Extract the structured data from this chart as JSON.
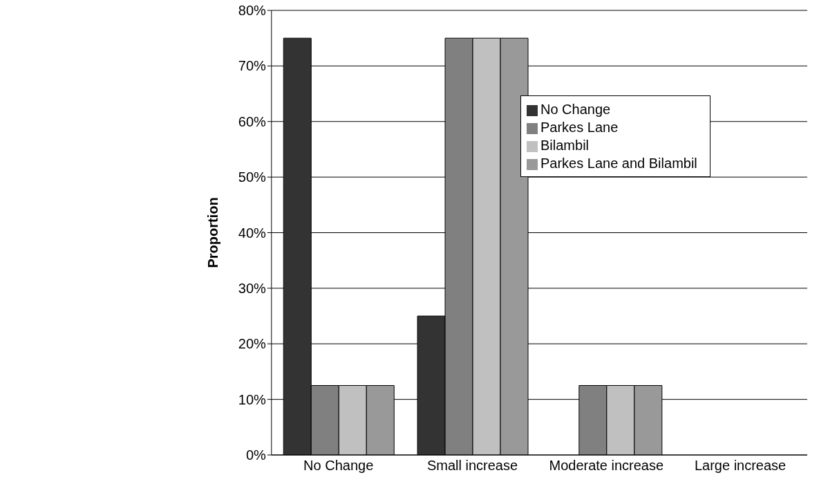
{
  "chart_data": {
    "type": "bar",
    "ylabel": "Proportion",
    "categories": [
      "No Change",
      "Small increase",
      "Moderate increase",
      "Large increase"
    ],
    "series": [
      {
        "name": "No Change",
        "color": "#333333",
        "values": [
          75,
          25,
          0,
          0
        ]
      },
      {
        "name": "Parkes Lane",
        "color": "#808080",
        "values": [
          12.5,
          75,
          12.5,
          0
        ]
      },
      {
        "name": "Bilambil",
        "color": "#c0c0c0",
        "values": [
          12.5,
          75,
          12.5,
          0
        ]
      },
      {
        "name": "Parkes Lane and Bilambil",
        "color": "#999999",
        "values": [
          12.5,
          75,
          12.5,
          0
        ]
      }
    ],
    "ylim": [
      0,
      80
    ],
    "yticks": [
      {
        "value": 0,
        "label": "0%"
      },
      {
        "value": 10,
        "label": "10%"
      },
      {
        "value": 20,
        "label": "20%"
      },
      {
        "value": 30,
        "label": "30%"
      },
      {
        "value": 40,
        "label": "40%"
      },
      {
        "value": 50,
        "label": "50%"
      },
      {
        "value": 60,
        "label": "60%"
      },
      {
        "value": 70,
        "label": "70%"
      },
      {
        "value": 80,
        "label": "80%"
      }
    ],
    "grid": "y",
    "legend": "top right"
  }
}
